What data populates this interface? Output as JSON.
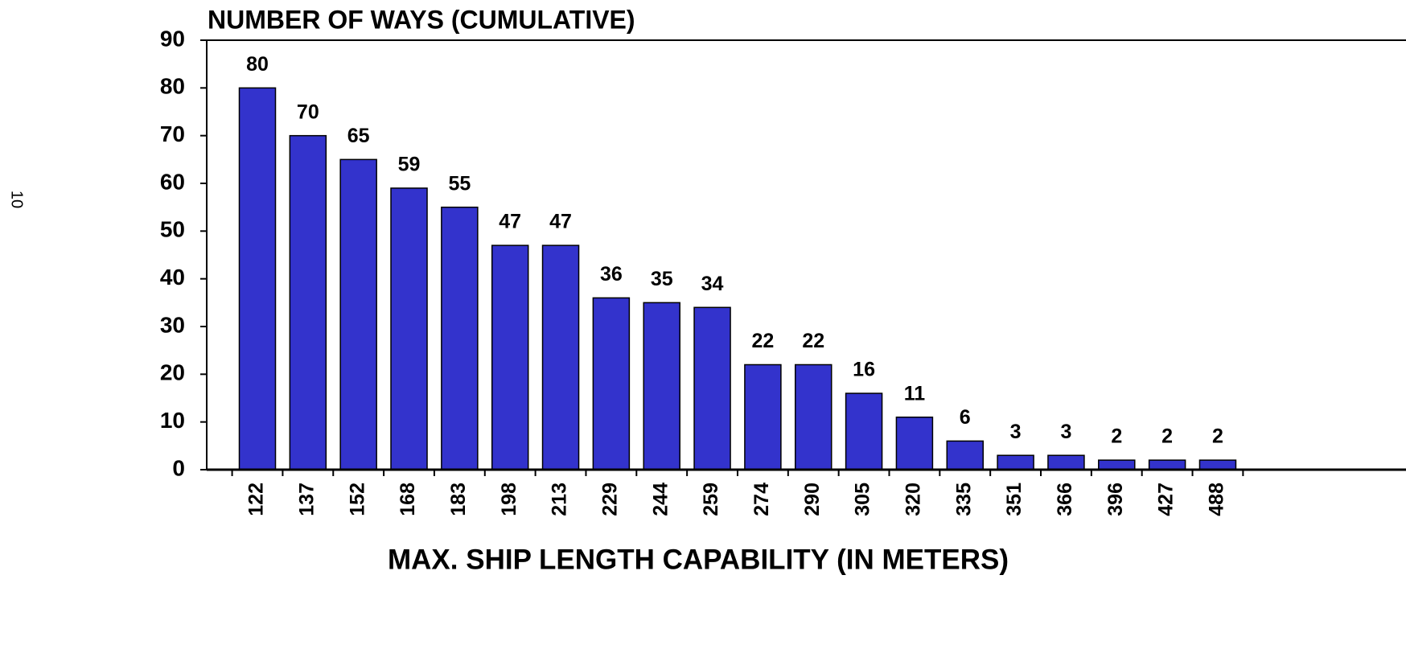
{
  "page_number": "10",
  "chart_data": {
    "type": "bar",
    "title": "NUMBER OF WAYS (CUMULATIVE)",
    "x_label": "MAX. SHIP LENGTH CAPABILITY (IN METERS)",
    "categories": [
      "122",
      "137",
      "152",
      "168",
      "183",
      "198",
      "213",
      "229",
      "244",
      "259",
      "274",
      "290",
      "305",
      "320",
      "335",
      "351",
      "366",
      "396",
      "427",
      "488"
    ],
    "values": [
      80,
      70,
      65,
      59,
      55,
      47,
      47,
      36,
      35,
      34,
      22,
      22,
      16,
      11,
      6,
      3,
      3,
      2,
      2,
      2
    ],
    "color": "#3333cc",
    "ylim": [
      0,
      90
    ],
    "yticks": [
      0,
      10,
      20,
      30,
      40,
      50,
      60,
      70,
      80,
      90
    ],
    "grid": false
  }
}
